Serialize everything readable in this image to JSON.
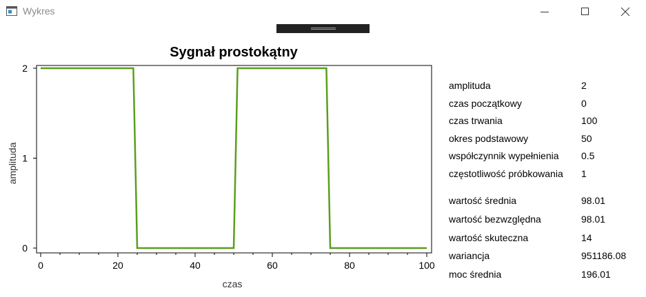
{
  "window": {
    "title": "Wykres",
    "icon": "app-window-icon",
    "controls": [
      "minimize-icon",
      "maximize-icon",
      "close-icon"
    ]
  },
  "chart_data": {
    "type": "line",
    "title": "Sygnał prostokątny",
    "xlabel": "czas",
    "ylabel": "amplituda",
    "xlim": [
      0,
      100
    ],
    "ylim": [
      0,
      2
    ],
    "x_ticks": [
      0,
      20,
      40,
      60,
      80,
      100
    ],
    "y_ticks": [
      0,
      1,
      2
    ],
    "grid": false,
    "color": "#5a9e1c",
    "series": [
      {
        "x": [
          0,
          24,
          25,
          50,
          51,
          74,
          75,
          100
        ],
        "y": [
          2,
          2,
          0,
          0,
          2,
          2,
          0,
          0
        ]
      }
    ]
  },
  "parameters": [
    {
      "label": "amplituda",
      "value": "2"
    },
    {
      "label": "czas początkowy",
      "value": "0"
    },
    {
      "label": "czas trwania",
      "value": "100"
    },
    {
      "label": "okres podstawowy",
      "value": "50"
    },
    {
      "label": "współczynnik wypełnienia",
      "value": "0.5"
    },
    {
      "label": "częstotliwość próbkowania",
      "value": "1"
    }
  ],
  "statistics": [
    {
      "label": "wartość średnia",
      "value": "98.01"
    },
    {
      "label": "wartość bezwzględna",
      "value": "98.01"
    },
    {
      "label": "wartość skuteczna",
      "value": "14"
    },
    {
      "label": "wariancja",
      "value": "951186.08"
    },
    {
      "label": "moc średnia",
      "value": "196.01"
    }
  ]
}
